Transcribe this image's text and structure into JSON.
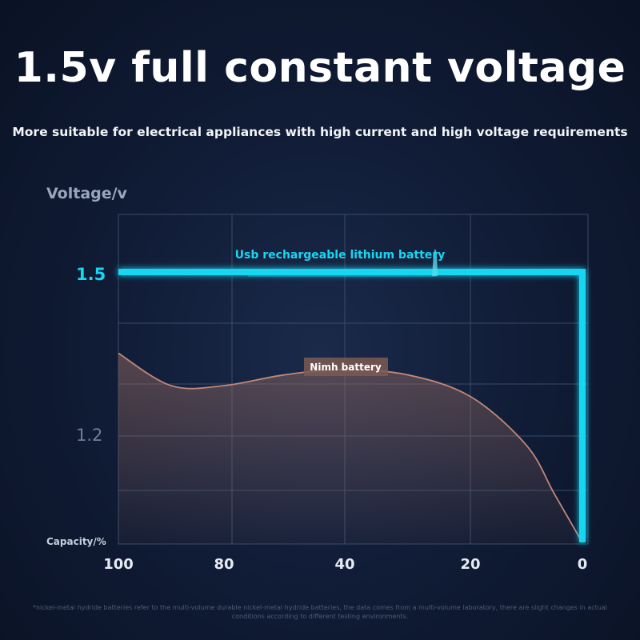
{
  "title": "1.5v full constant voltage",
  "subtitle": "More suitable for electrical appliances with high current and high voltage requirements",
  "footnote": "*nickel-metal hydride batteries refer to the multi-volume durable nickel-metal hydride batteries, the data comes from a multi-volume laboratory, there are slight changes in actual conditions according to different testing environments.",
  "colors": {
    "lithium": "#18d6f2",
    "nimh": "#b0786a",
    "background": "#0f1a33"
  },
  "chart_data": {
    "type": "line",
    "ylabel": "Voltage/v",
    "xlabel": "Capacity/%",
    "x_ticks": [
      "100",
      "80",
      "40",
      "20",
      "0"
    ],
    "y_ticks": [
      "1.5",
      "1.2"
    ],
    "series": [
      {
        "name": "Usb rechargeable lithium battery",
        "points": [
          [
            100,
            1.5
          ],
          [
            80,
            1.5
          ],
          [
            40,
            1.5
          ],
          [
            20,
            1.5
          ],
          [
            0,
            1.5
          ],
          [
            0,
            1.0
          ]
        ]
      },
      {
        "name": "Nimh battery",
        "points": [
          [
            100,
            1.35
          ],
          [
            90,
            1.29
          ],
          [
            80,
            1.29
          ],
          [
            60,
            1.31
          ],
          [
            40,
            1.32
          ],
          [
            30,
            1.31
          ],
          [
            20,
            1.27
          ],
          [
            10,
            1.18
          ],
          [
            5,
            1.09
          ],
          [
            0,
            1.0
          ]
        ]
      }
    ]
  }
}
